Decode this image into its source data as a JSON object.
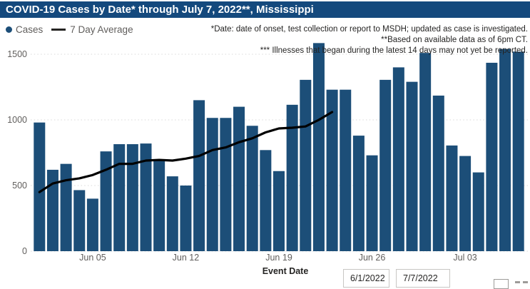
{
  "title": {
    "text": "COVID-19 Cases by Date* through July 7, 2022**, Mississippi"
  },
  "legend": {
    "cases_label": "Cases",
    "avg_label": "7 Day Average"
  },
  "annotations": {
    "line1": "*Date: date of onset, test collection or report to MSDH; updated as case is investigated.",
    "line2": "**Based on available data as of 6pm CT.",
    "line3": "*** Illnesses that began during the latest 14 days may not yet be reported."
  },
  "colors": {
    "title_bar": "#14497D",
    "title_text": "#FFFFFF",
    "bar": "#1C4E78",
    "avg_line": "#000000",
    "grid": "#D9D9D9",
    "tick_text": "#605E5C",
    "annotation_text": "#252423"
  },
  "x_axis": {
    "title": "Event Date",
    "tick_labels": [
      "Jun 05",
      "Jun 12",
      "Jun 19",
      "Jun 26",
      "Jul 03"
    ],
    "tick_positions": [
      4,
      11,
      18,
      25,
      32
    ]
  },
  "y_axis": {
    "ticks": [
      0,
      500,
      1000,
      1500
    ]
  },
  "slicer": {
    "start_date": "6/1/2022",
    "end_date": "7/7/2022"
  },
  "chart_data": {
    "type": "bar",
    "title": "COVID-19 Cases by Date* through July 7, 2022**, Mississippi",
    "xlabel": "Event Date",
    "ylabel": "",
    "ylim": [
      0,
      1600
    ],
    "grid": "dotted horizontal",
    "legend_position": "top-left",
    "categories": [
      "Jun 1",
      "Jun 2",
      "Jun 3",
      "Jun 4",
      "Jun 5",
      "Jun 6",
      "Jun 7",
      "Jun 8",
      "Jun 9",
      "Jun 10",
      "Jun 11",
      "Jun 12",
      "Jun 13",
      "Jun 14",
      "Jun 15",
      "Jun 16",
      "Jun 17",
      "Jun 18",
      "Jun 19",
      "Jun 20",
      "Jun 21",
      "Jun 22",
      "Jun 23",
      "Jun 24",
      "Jun 25",
      "Jun 26",
      "Jun 27",
      "Jun 28",
      "Jun 29",
      "Jun 30",
      "Jul 1",
      "Jul 2",
      "Jul 3",
      "Jul 4",
      "Jul 5",
      "Jul 6",
      "Jul 7"
    ],
    "series": [
      {
        "name": "Cases",
        "type": "bar",
        "values": [
          980,
          620,
          665,
          465,
          400,
          760,
          815,
          815,
          820,
          700,
          570,
          500,
          1150,
          1015,
          1015,
          1100,
          955,
          770,
          610,
          1115,
          1305,
          1585,
          1230,
          1230,
          880,
          730,
          1305,
          1400,
          1290,
          1510,
          1185,
          805,
          725,
          600,
          1435,
          1540,
          1520
        ]
      },
      {
        "name": "7 Day Average",
        "type": "line",
        "values": [
          450,
          515,
          540,
          555,
          580,
          620,
          665,
          665,
          690,
          695,
          690,
          705,
          725,
          770,
          790,
          830,
          860,
          905,
          935,
          940,
          950,
          1000,
          1060,
          null,
          null,
          null,
          null,
          null,
          null,
          null,
          null,
          null,
          null,
          null,
          null,
          null,
          null
        ]
      }
    ]
  }
}
